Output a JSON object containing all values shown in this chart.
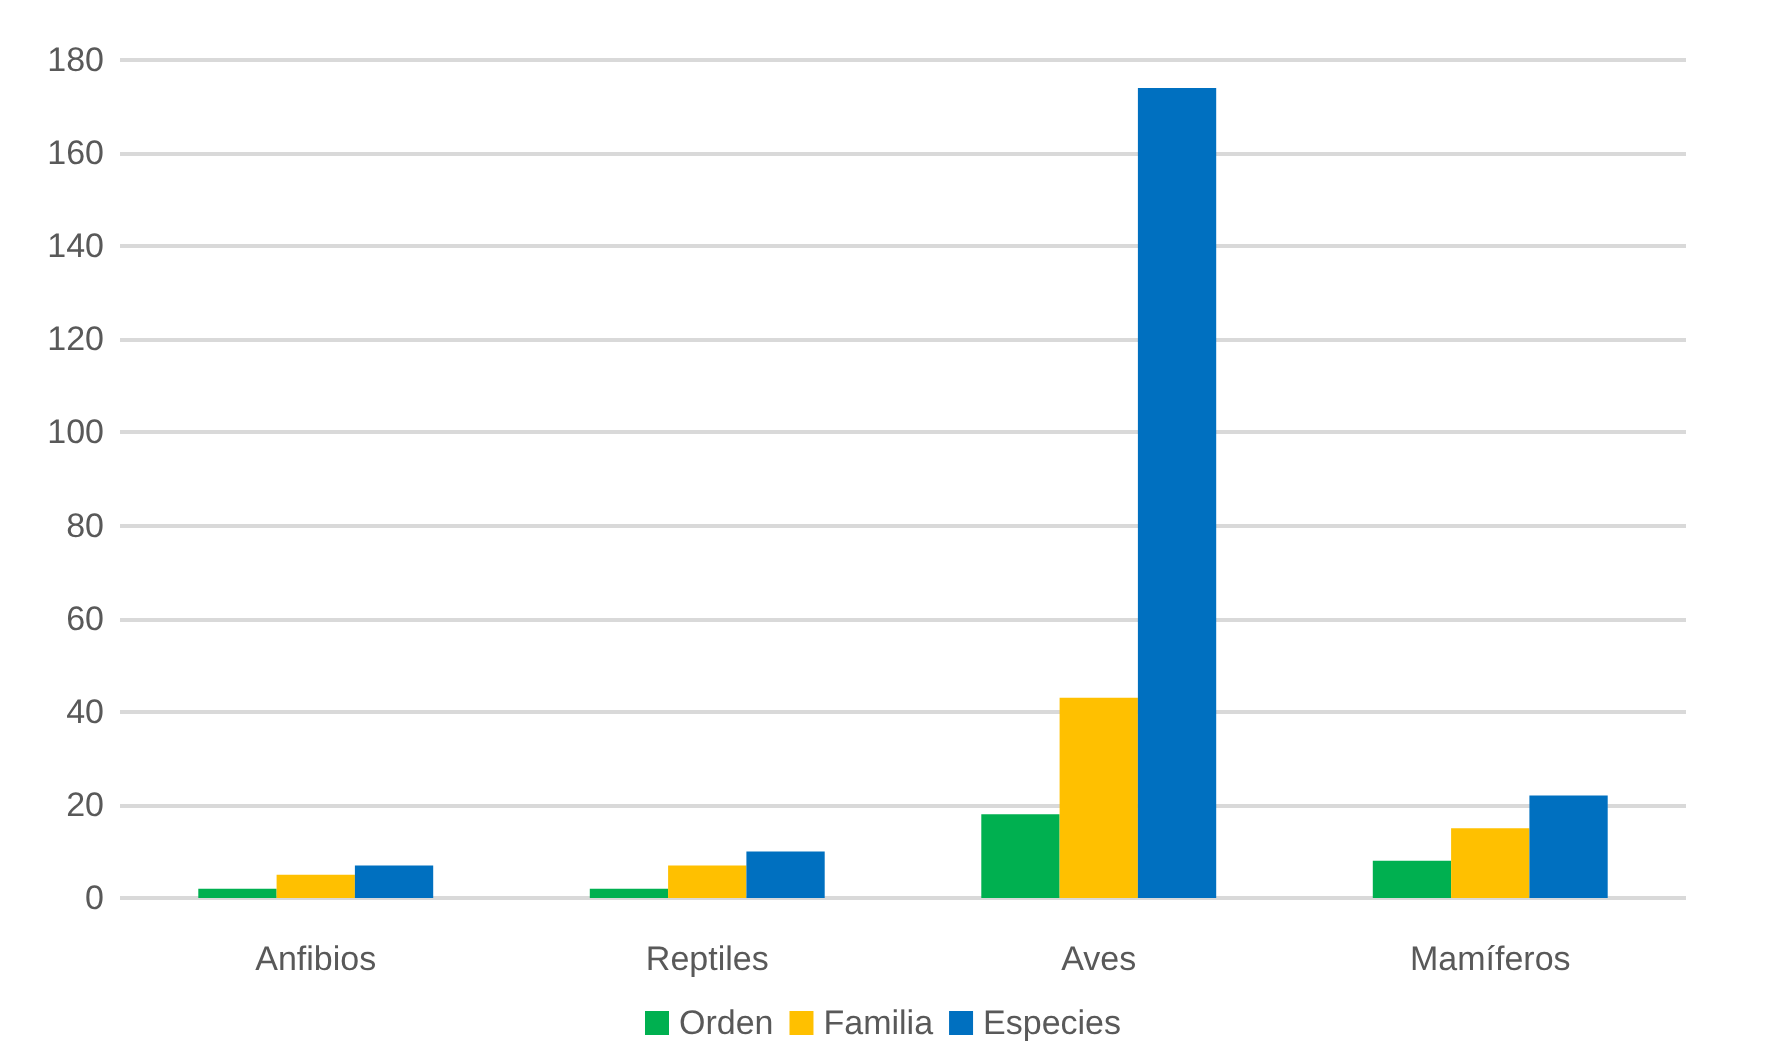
{
  "chart_data": {
    "type": "bar",
    "categories": [
      "Anfibios",
      "Reptiles",
      "Aves",
      "Mamíferos"
    ],
    "series": [
      {
        "name": "Orden",
        "color": "#00b050",
        "values": [
          2,
          2,
          18,
          8
        ]
      },
      {
        "name": "Familia",
        "color": "#ffc000",
        "values": [
          5,
          7,
          43,
          15
        ]
      },
      {
        "name": "Especies",
        "color": "#0070c0",
        "values": [
          7,
          10,
          174,
          22
        ]
      }
    ],
    "ylim": [
      0,
      180
    ],
    "yticks": [
      0,
      20,
      40,
      60,
      80,
      100,
      120,
      140,
      160,
      180
    ],
    "grid": "y",
    "legend": "bottom"
  }
}
